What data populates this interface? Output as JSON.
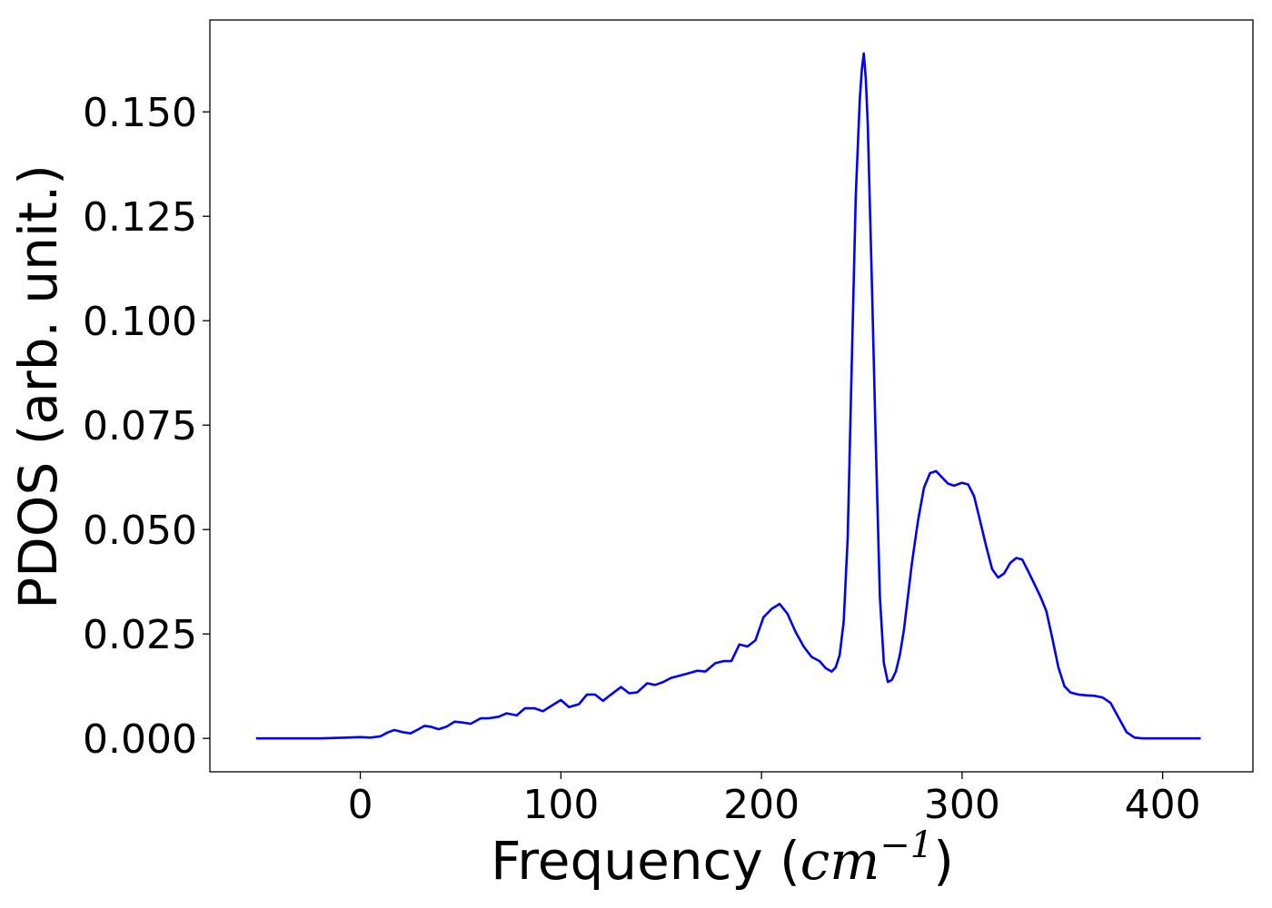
{
  "chart_data": {
    "type": "line",
    "xlabel_text": "Frequency (",
    "xlabel_unit": "cm",
    "xlabel_exp": "−1",
    "xlabel_close": ")",
    "ylabel": "PDOS (arb. unit.)",
    "xlim": [
      -75,
      445
    ],
    "ylim": [
      -0.008,
      0.172
    ],
    "xticks": [
      0,
      100,
      200,
      300,
      400
    ],
    "xtick_labels": [
      "0",
      "100",
      "200",
      "300",
      "400"
    ],
    "yticks": [
      0.0,
      0.025,
      0.05,
      0.075,
      0.1,
      0.125,
      0.15
    ],
    "ytick_labels": [
      "0.000",
      "0.025",
      "0.050",
      "0.075",
      "0.100",
      "0.125",
      "0.150"
    ],
    "grid": false,
    "colors": {
      "line": "#0000ff",
      "axes": "#000000"
    },
    "series": [
      {
        "x": [
          -52,
          -40,
          -20,
          0,
          5,
          10,
          14,
          17,
          21,
          25,
          29,
          32,
          35,
          39,
          43,
          47,
          51,
          55,
          60,
          64,
          69,
          73,
          78,
          82,
          87,
          91,
          96,
          100,
          104,
          109,
          113,
          117,
          121,
          125,
          130,
          134,
          138,
          143,
          147,
          151,
          155,
          159,
          163,
          168,
          172,
          177,
          181,
          185,
          189,
          193,
          197,
          201,
          205,
          209,
          213,
          217,
          221,
          225,
          229,
          232,
          235,
          237,
          239,
          241,
          243,
          245,
          247,
          249,
          250,
          251,
          252,
          253,
          255,
          257,
          259,
          261,
          263,
          265,
          267,
          269,
          271,
          273,
          275,
          278,
          281,
          284,
          287,
          290,
          293,
          296,
          300,
          303,
          306,
          309,
          312,
          315,
          318,
          321,
          324,
          327,
          330,
          333,
          336,
          339,
          342,
          345,
          348,
          351,
          354,
          358,
          362,
          366,
          370,
          374,
          378,
          382,
          386,
          390,
          400,
          410,
          419
        ],
        "y": [
          0.0,
          0.0,
          0.0,
          0.0003,
          0.0002,
          0.0005,
          0.0015,
          0.002,
          0.0015,
          0.0012,
          0.0022,
          0.003,
          0.0028,
          0.0022,
          0.0028,
          0.004,
          0.0038,
          0.0035,
          0.0048,
          0.0048,
          0.0052,
          0.006,
          0.0055,
          0.0072,
          0.0072,
          0.0065,
          0.008,
          0.0092,
          0.0075,
          0.0082,
          0.0105,
          0.0105,
          0.009,
          0.0105,
          0.0123,
          0.0108,
          0.011,
          0.0132,
          0.0128,
          0.0135,
          0.0145,
          0.015,
          0.0155,
          0.0162,
          0.016,
          0.018,
          0.0185,
          0.0185,
          0.0225,
          0.022,
          0.0235,
          0.029,
          0.031,
          0.0322,
          0.0298,
          0.0255,
          0.022,
          0.0195,
          0.0185,
          0.0168,
          0.016,
          0.017,
          0.02,
          0.028,
          0.048,
          0.09,
          0.13,
          0.153,
          0.16,
          0.164,
          0.158,
          0.147,
          0.11,
          0.07,
          0.034,
          0.018,
          0.0135,
          0.014,
          0.016,
          0.02,
          0.026,
          0.034,
          0.042,
          0.052,
          0.06,
          0.0635,
          0.064,
          0.0625,
          0.061,
          0.0605,
          0.0612,
          0.0608,
          0.058,
          0.052,
          0.046,
          0.0405,
          0.0385,
          0.0395,
          0.042,
          0.0432,
          0.0428,
          0.04,
          0.037,
          0.034,
          0.0305,
          0.024,
          0.017,
          0.0125,
          0.011,
          0.0105,
          0.0103,
          0.0102,
          0.0098,
          0.0085,
          0.005,
          0.0015,
          0.0002,
          0.0,
          0.0,
          0.0,
          0.0
        ]
      }
    ]
  }
}
